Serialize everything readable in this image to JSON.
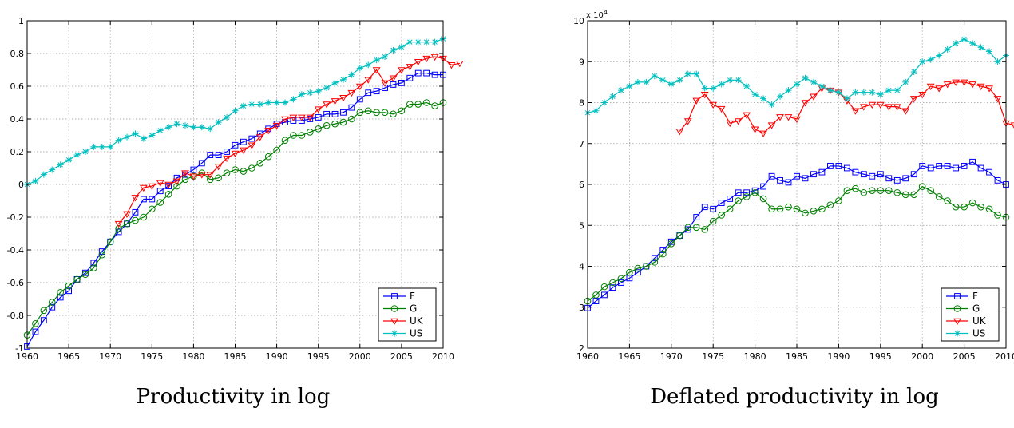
{
  "chart_data": [
    {
      "type": "line",
      "caption": "Productivity in log",
      "x_ticks": [
        1960,
        1965,
        1970,
        1975,
        1980,
        1985,
        1990,
        1995,
        2000,
        2005,
        2010
      ],
      "y_ticks": [
        -1,
        -0.8,
        -0.6,
        -0.4,
        -0.2,
        0,
        0.2,
        0.4,
        0.6,
        0.8,
        1
      ],
      "y_tick_labels": [
        "-1",
        "-0.8",
        "-0.6",
        "-0.4",
        "-0.2",
        "0",
        "0.2",
        "0.4",
        "0.6",
        "0.8",
        "1"
      ],
      "xlim": [
        1960,
        2010
      ],
      "ylim": [
        -1,
        1
      ],
      "grid": true,
      "legend_position": "bottom-right",
      "series": [
        {
          "name": "F",
          "color": "#0000ff",
          "marker": "square",
          "x_start": 1960,
          "values": [
            -0.99,
            -0.9,
            -0.83,
            -0.75,
            -0.69,
            -0.65,
            -0.58,
            -0.54,
            -0.48,
            -0.41,
            -0.35,
            -0.29,
            -0.24,
            -0.17,
            -0.09,
            -0.09,
            -0.04,
            -0.01,
            0.04,
            0.06,
            0.09,
            0.13,
            0.18,
            0.18,
            0.2,
            0.24,
            0.26,
            0.28,
            0.31,
            0.34,
            0.37,
            0.38,
            0.39,
            0.39,
            0.4,
            0.41,
            0.43,
            0.43,
            0.44,
            0.47,
            0.52,
            0.56,
            0.57,
            0.59,
            0.61,
            0.62,
            0.65,
            0.68,
            0.68,
            0.67,
            0.67
          ]
        },
        {
          "name": "G",
          "color": "#008000",
          "marker": "circle",
          "x_start": 1960,
          "values": [
            -0.92,
            -0.85,
            -0.77,
            -0.72,
            -0.66,
            -0.62,
            -0.58,
            -0.55,
            -0.51,
            -0.43,
            -0.35,
            -0.27,
            -0.24,
            -0.22,
            -0.2,
            -0.15,
            -0.11,
            -0.06,
            -0.01,
            0.03,
            0.05,
            0.07,
            0.03,
            0.04,
            0.07,
            0.09,
            0.08,
            0.1,
            0.13,
            0.17,
            0.21,
            0.27,
            0.3,
            0.3,
            0.32,
            0.34,
            0.36,
            0.37,
            0.38,
            0.4,
            0.44,
            0.45,
            0.44,
            0.44,
            0.43,
            0.45,
            0.49,
            0.49,
            0.5,
            0.48,
            0.5
          ]
        },
        {
          "name": "UK",
          "color": "#ff0000",
          "marker": "triangle-down",
          "x_start": 1971,
          "values": [
            -0.24,
            -0.18,
            -0.08,
            -0.02,
            -0.01,
            0.01,
            0.0,
            0.02,
            0.07,
            0.05,
            0.06,
            0.06,
            0.11,
            0.16,
            0.19,
            0.21,
            0.24,
            0.29,
            0.33,
            0.36,
            0.4,
            0.41,
            0.41,
            0.41,
            0.46,
            0.49,
            0.51,
            0.53,
            0.56,
            0.6,
            0.64,
            0.7,
            0.62,
            0.65,
            0.7,
            0.72,
            0.75,
            0.77,
            0.78,
            0.77,
            0.73,
            0.74
          ]
        },
        {
          "name": "US",
          "color": "#00bfbf",
          "marker": "star",
          "x_start": 1960,
          "values": [
            0.0,
            0.02,
            0.06,
            0.09,
            0.12,
            0.15,
            0.18,
            0.2,
            0.23,
            0.23,
            0.23,
            0.27,
            0.29,
            0.31,
            0.28,
            0.3,
            0.33,
            0.35,
            0.37,
            0.36,
            0.35,
            0.35,
            0.34,
            0.38,
            0.41,
            0.45,
            0.48,
            0.49,
            0.49,
            0.5,
            0.5,
            0.5,
            0.52,
            0.55,
            0.56,
            0.57,
            0.59,
            0.62,
            0.64,
            0.67,
            0.71,
            0.73,
            0.76,
            0.78,
            0.82,
            0.84,
            0.87,
            0.87,
            0.87,
            0.87,
            0.89
          ]
        }
      ]
    },
    {
      "type": "line",
      "caption": "Deflated productivity in log",
      "y_exponent": "x 10",
      "y_exponent_power": "4",
      "x_ticks": [
        1960,
        1965,
        1970,
        1975,
        1980,
        1985,
        1990,
        1995,
        2000,
        2005,
        2010
      ],
      "y_ticks": [
        2,
        3,
        4,
        5,
        6,
        7,
        8,
        9,
        10
      ],
      "y_tick_labels": [
        "2",
        "3",
        "4",
        "5",
        "6",
        "7",
        "8",
        "9",
        "10"
      ],
      "xlim": [
        1960,
        2010
      ],
      "ylim": [
        2,
        10
      ],
      "grid": true,
      "legend_position": "bottom-right",
      "series": [
        {
          "name": "F",
          "color": "#0000ff",
          "marker": "square",
          "x_start": 1960,
          "values": [
            2.98,
            3.15,
            3.3,
            3.48,
            3.6,
            3.71,
            3.85,
            4.0,
            4.2,
            4.4,
            4.6,
            4.75,
            4.9,
            5.2,
            5.45,
            5.4,
            5.55,
            5.65,
            5.8,
            5.8,
            5.85,
            5.95,
            6.2,
            6.1,
            6.05,
            6.2,
            6.15,
            6.25,
            6.3,
            6.45,
            6.45,
            6.4,
            6.3,
            6.25,
            6.2,
            6.25,
            6.15,
            6.1,
            6.15,
            6.25,
            6.45,
            6.4,
            6.45,
            6.45,
            6.4,
            6.45,
            6.55,
            6.4,
            6.3,
            6.1,
            6.0
          ]
        },
        {
          "name": "G",
          "color": "#008000",
          "marker": "circle",
          "x_start": 1960,
          "values": [
            3.15,
            3.3,
            3.5,
            3.6,
            3.7,
            3.85,
            3.95,
            4.0,
            4.1,
            4.3,
            4.55,
            4.75,
            4.95,
            4.95,
            4.9,
            5.1,
            5.25,
            5.4,
            5.6,
            5.7,
            5.8,
            5.65,
            5.4,
            5.4,
            5.45,
            5.4,
            5.3,
            5.35,
            5.4,
            5.5,
            5.6,
            5.85,
            5.9,
            5.8,
            5.85,
            5.85,
            5.85,
            5.8,
            5.75,
            5.75,
            5.95,
            5.85,
            5.7,
            5.6,
            5.45,
            5.45,
            5.55,
            5.45,
            5.4,
            5.25,
            5.2
          ]
        },
        {
          "name": "UK",
          "color": "#ff0000",
          "marker": "triangle-down",
          "x_start": 1971,
          "values": [
            7.3,
            7.55,
            8.05,
            8.2,
            7.95,
            7.85,
            7.5,
            7.55,
            7.7,
            7.35,
            7.25,
            7.45,
            7.65,
            7.65,
            7.6,
            8.0,
            8.15,
            8.35,
            8.3,
            8.25,
            8.05,
            7.8,
            7.9,
            7.95,
            7.95,
            7.9,
            7.9,
            7.8,
            8.1,
            8.2,
            8.4,
            8.35,
            8.45,
            8.5,
            8.5,
            8.45,
            8.4,
            8.35,
            8.1,
            7.5,
            7.45
          ]
        },
        {
          "name": "US",
          "color": "#00bfbf",
          "marker": "star",
          "x_start": 1960,
          "values": [
            7.75,
            7.8,
            8.0,
            8.15,
            8.3,
            8.4,
            8.5,
            8.5,
            8.65,
            8.55,
            8.45,
            8.55,
            8.7,
            8.7,
            8.35,
            8.35,
            8.45,
            8.55,
            8.55,
            8.4,
            8.2,
            8.1,
            7.95,
            8.15,
            8.3,
            8.45,
            8.6,
            8.5,
            8.4,
            8.3,
            8.25,
            8.1,
            8.25,
            8.25,
            8.25,
            8.2,
            8.3,
            8.3,
            8.5,
            8.75,
            9.0,
            9.05,
            9.15,
            9.3,
            9.45,
            9.55,
            9.45,
            9.35,
            9.25,
            9.0,
            9.15
          ]
        }
      ]
    }
  ]
}
